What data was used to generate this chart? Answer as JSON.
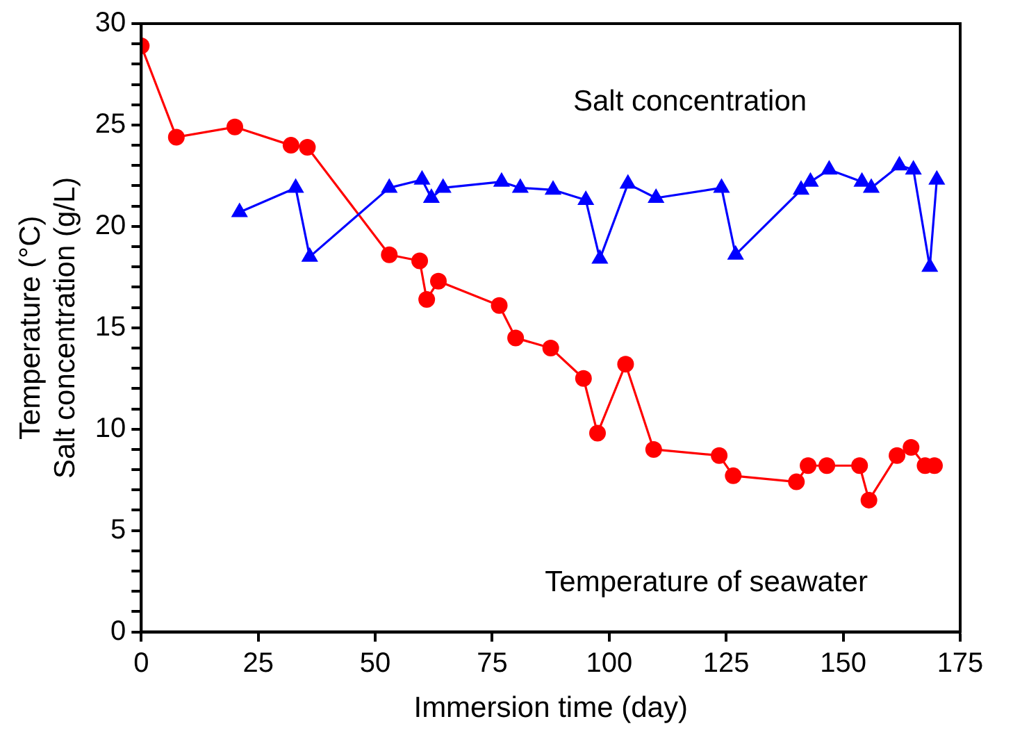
{
  "chart_data": {
    "type": "line",
    "xlabel": "Immersion time (day)",
    "ylabel": "Temperature (°C)\nSalt concentration (g/L)",
    "xlim": [
      0,
      175
    ],
    "xticks": [
      0,
      25,
      50,
      75,
      100,
      125,
      150,
      175
    ],
    "ylim": [
      0,
      30
    ],
    "yticks": [
      0,
      {
        "value": 1,
        "label": null
      },
      {
        "value": 2,
        "label": null
      },
      {
        "value": 3,
        "label": null
      },
      {
        "value": 4,
        "label": null
      },
      5,
      {
        "value": 6,
        "label": null
      },
      {
        "value": 7,
        "label": null
      },
      {
        "value": 8,
        "label": null
      },
      {
        "value": 9,
        "label": null
      },
      10,
      {
        "value": 11,
        "label": null
      },
      {
        "value": 12,
        "label": null
      },
      {
        "value": 13,
        "label": null
      },
      {
        "value": 14,
        "label": null
      },
      15,
      {
        "value": 16,
        "label": null
      },
      {
        "value": 17,
        "label": null
      },
      {
        "value": 18,
        "label": null
      },
      {
        "value": 19,
        "label": null
      },
      20,
      {
        "value": 21,
        "label": null
      },
      {
        "value": 22,
        "label": null
      },
      {
        "value": 23,
        "label": null
      },
      {
        "value": 24,
        "label": null
      },
      25,
      {
        "value": 26,
        "label": null
      },
      {
        "value": 27,
        "label": null
      },
      {
        "value": 28,
        "label": null
      },
      {
        "value": 29,
        "label": null
      },
      30
    ],
    "grid": false,
    "legend": false,
    "line_style": "solid",
    "series": [
      {
        "name": "Salt concentration",
        "color": "#0000ff",
        "marker": "triangle",
        "x": [
          21,
          33,
          36,
          53,
          60,
          62,
          64.5,
          77,
          81,
          88,
          95,
          98,
          104,
          110,
          124,
          127,
          141,
          143,
          147,
          154,
          156,
          162,
          165,
          168.5,
          170
        ],
        "values": [
          20.7,
          21.9,
          18.5,
          21.9,
          22.3,
          21.4,
          21.9,
          22.2,
          21.9,
          21.8,
          21.3,
          18.4,
          22.1,
          21.4,
          21.9,
          18.6,
          21.8,
          22.2,
          22.8,
          22.2,
          21.9,
          23.0,
          22.8,
          18.0,
          22.3
        ]
      },
      {
        "name": "Temperature of seawater",
        "color": "#ff0000",
        "marker": "circle",
        "x": [
          0,
          7.5,
          20,
          32,
          35.5,
          53,
          59.5,
          61,
          63.5,
          76.5,
          80,
          87.5,
          94.5,
          97.5,
          103.5,
          109.5,
          123.5,
          126.5,
          140,
          142.5,
          146.5,
          153.5,
          155.5,
          161.5,
          164.5,
          167.5,
          169.5
        ],
        "values": [
          28.9,
          24.4,
          24.9,
          24.0,
          23.9,
          18.6,
          18.3,
          16.4,
          17.3,
          16.1,
          14.5,
          14.0,
          12.5,
          9.8,
          13.2,
          9.0,
          8.7,
          7.7,
          7.4,
          8.2,
          8.2,
          8.2,
          6.5,
          8.7,
          9.1,
          8.2,
          8.2
        ]
      }
    ]
  }
}
